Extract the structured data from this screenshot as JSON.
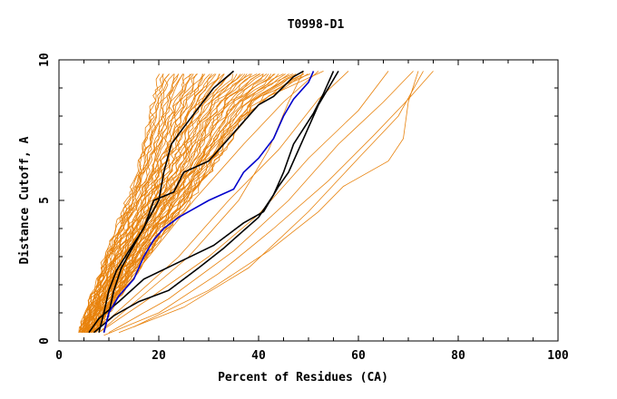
{
  "chart_data": {
    "type": "line",
    "title": "T0998-D1",
    "xlabel": "Percent of Residues (CA)",
    "ylabel": "Distance Cutoff, A",
    "xlim": [
      0,
      100
    ],
    "ylim": [
      0,
      10
    ],
    "x_ticks": [
      "0",
      "20",
      "40",
      "60",
      "80",
      "100"
    ],
    "y_ticks": [
      "0",
      "5",
      "10"
    ],
    "grid": false,
    "legend": "none",
    "colors": {
      "orange": "#e8820c",
      "black": "#000000",
      "blue": "#0000cc"
    },
    "band": {
      "color": "#e8820c",
      "count": 60,
      "left_edge": [
        [
          4,
          0.3
        ],
        [
          5.5,
          1
        ],
        [
          7,
          1.8
        ],
        [
          8.5,
          2.6
        ],
        [
          10,
          3.3
        ],
        [
          11.5,
          4
        ],
        [
          13,
          4.7
        ],
        [
          14.5,
          5.4
        ],
        [
          16,
          6.2
        ],
        [
          17,
          7
        ],
        [
          18,
          7.8
        ],
        [
          19,
          8.6
        ],
        [
          20,
          9.5
        ]
      ],
      "right_edge": [
        [
          7,
          0.3
        ],
        [
          10,
          1
        ],
        [
          13,
          1.8
        ],
        [
          16,
          2.6
        ],
        [
          19,
          3.3
        ],
        [
          22,
          4
        ],
        [
          25,
          4.7
        ],
        [
          28,
          5.4
        ],
        [
          31,
          6.2
        ],
        [
          34,
          7
        ],
        [
          37,
          7.8
        ],
        [
          41,
          8.6
        ],
        [
          50,
          9.5
        ]
      ]
    },
    "series": [
      {
        "color": "#e8820c",
        "points": [
          [
            5,
            0.3
          ],
          [
            9,
            1.5
          ],
          [
            14,
            3
          ],
          [
            22,
            5
          ],
          [
            31,
            7
          ],
          [
            42,
            8.7
          ],
          [
            53,
            9.6
          ]
        ]
      },
      {
        "color": "#e8820c",
        "points": [
          [
            6,
            0.3
          ],
          [
            11,
            1.5
          ],
          [
            18,
            3
          ],
          [
            27,
            5
          ],
          [
            37,
            7
          ],
          [
            45,
            8.5
          ],
          [
            52,
            9.6
          ]
        ]
      },
      {
        "color": "#e8820c",
        "points": [
          [
            7,
            0.3
          ],
          [
            14,
            1.4
          ],
          [
            24,
            3
          ],
          [
            34,
            5
          ],
          [
            44,
            6.8
          ],
          [
            52,
            8.6
          ],
          [
            58,
            9.6
          ]
        ]
      },
      {
        "color": "#e8820c",
        "points": [
          [
            8,
            0.3
          ],
          [
            18,
            1.5
          ],
          [
            30,
            3
          ],
          [
            40,
            4.5
          ],
          [
            50,
            6.5
          ],
          [
            60,
            8.2
          ],
          [
            66,
            9.6
          ]
        ]
      },
      {
        "color": "#e8820c",
        "points": [
          [
            10,
            0.3
          ],
          [
            22,
            1.5
          ],
          [
            35,
            3.2
          ],
          [
            46,
            5
          ],
          [
            56,
            7
          ],
          [
            65,
            8.5
          ],
          [
            71,
            9.6
          ]
        ]
      },
      {
        "color": "#e8820c",
        "points": [
          [
            9,
            0.2
          ],
          [
            20,
            1
          ],
          [
            32,
            2.4
          ],
          [
            43,
            4
          ],
          [
            54,
            5.7
          ],
          [
            63,
            7.3
          ],
          [
            70,
            8.6
          ],
          [
            75,
            9.6
          ]
        ]
      },
      {
        "color": "#e8820c",
        "points": [
          [
            12,
            0.3
          ],
          [
            25,
            1.2
          ],
          [
            38,
            2.6
          ],
          [
            50,
            4.6
          ],
          [
            60,
            6.5
          ],
          [
            68,
            8
          ],
          [
            73,
            9.6
          ]
        ]
      },
      {
        "color": "#e8820c",
        "points": [
          [
            15,
            0.5
          ],
          [
            30,
            1.8
          ],
          [
            42,
            3.2
          ],
          [
            52,
            4.6
          ],
          [
            57,
            5.5
          ],
          [
            66,
            6.4
          ],
          [
            69,
            7.2
          ],
          [
            70,
            8.5
          ],
          [
            72,
            9.6
          ]
        ]
      },
      {
        "color": "#e8820c",
        "points": [
          [
            8,
            0.3
          ],
          [
            16,
            1.5
          ],
          [
            26,
            3
          ],
          [
            36,
            5
          ],
          [
            42,
            6.8
          ],
          [
            46,
            8.5
          ],
          [
            49,
            9.6
          ]
        ]
      },
      {
        "color": "#000000",
        "points": [
          [
            8,
            0.3
          ],
          [
            9,
            1
          ],
          [
            10,
            1.8
          ],
          [
            11.5,
            2.5
          ],
          [
            14,
            3.2
          ],
          [
            17,
            4
          ],
          [
            19,
            5
          ],
          [
            23,
            5.3
          ],
          [
            25,
            6
          ],
          [
            30,
            6.4
          ],
          [
            34,
            7.2
          ],
          [
            37,
            7.8
          ],
          [
            40,
            8.4
          ],
          [
            43,
            8.7
          ],
          [
            47,
            9.4
          ],
          [
            49,
            9.6
          ]
        ]
      },
      {
        "color": "#000000",
        "points": [
          [
            9,
            0.3
          ],
          [
            10,
            1
          ],
          [
            11,
            1.8
          ],
          [
            12.5,
            2.6
          ],
          [
            15,
            3.4
          ],
          [
            17.5,
            4.2
          ],
          [
            20,
            5
          ],
          [
            21,
            6
          ],
          [
            22.5,
            7
          ],
          [
            25,
            7.6
          ],
          [
            28,
            8.3
          ],
          [
            31,
            9
          ],
          [
            35,
            9.6
          ]
        ]
      },
      {
        "color": "#000000",
        "points": [
          [
            6,
            0.3
          ],
          [
            8,
            0.8
          ],
          [
            12,
            1.4
          ],
          [
            17,
            2.2
          ],
          [
            24,
            2.8
          ],
          [
            31,
            3.4
          ],
          [
            37,
            4.2
          ],
          [
            41,
            4.6
          ],
          [
            44,
            5.5
          ],
          [
            46,
            6
          ],
          [
            49,
            7.2
          ],
          [
            52,
            8.4
          ],
          [
            56,
            9.6
          ]
        ]
      },
      {
        "color": "#000000",
        "points": [
          [
            7,
            0.3
          ],
          [
            11,
            0.9
          ],
          [
            16,
            1.4
          ],
          [
            22,
            1.8
          ],
          [
            28,
            2.6
          ],
          [
            33,
            3.3
          ],
          [
            40,
            4.4
          ],
          [
            43,
            5.2
          ],
          [
            45,
            6
          ],
          [
            47,
            7
          ],
          [
            51,
            8.1
          ],
          [
            53,
            8.8
          ],
          [
            55,
            9.6
          ]
        ]
      },
      {
        "color": "#0000cc",
        "points": [
          [
            9,
            0.3
          ],
          [
            10,
            1
          ],
          [
            12,
            1.6
          ],
          [
            15,
            2.2
          ],
          [
            17,
            3
          ],
          [
            19,
            3.6
          ],
          [
            21,
            4
          ],
          [
            24,
            4.4
          ],
          [
            27,
            4.7
          ],
          [
            30,
            5
          ],
          [
            35,
            5.4
          ],
          [
            37,
            6
          ],
          [
            40,
            6.5
          ],
          [
            43,
            7.2
          ],
          [
            45,
            8
          ],
          [
            47,
            8.6
          ],
          [
            50,
            9.2
          ],
          [
            51,
            9.6
          ]
        ]
      }
    ]
  }
}
